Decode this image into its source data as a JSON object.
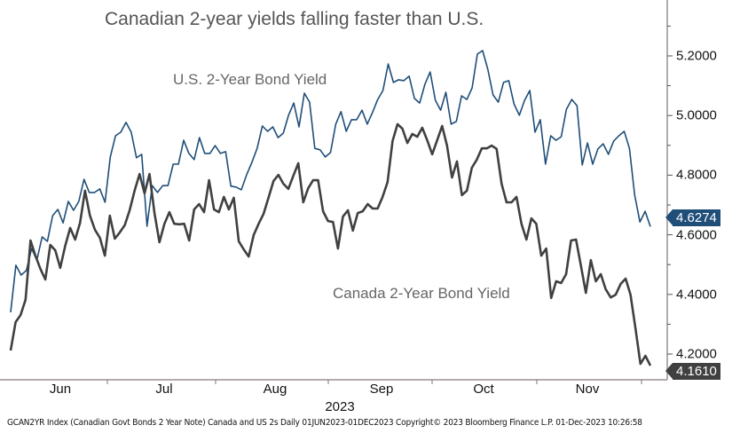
{
  "chart_data": {
    "type": "line",
    "title": "Canadian 2-year yields falling faster than U.S.",
    "x_range": [
      "2023-06-01",
      "2023-12-01"
    ],
    "frequency": "Daily",
    "x_tick_labels": [
      "Jun",
      "Jul",
      "Aug",
      "Sep",
      "Oct",
      "Nov"
    ],
    "x_year_label": "2023",
    "y_axis_position": "right",
    "ylim": [
      4.1,
      5.3
    ],
    "y_ticks": [
      4.2,
      4.4,
      4.6,
      4.8,
      5.0,
      5.2
    ],
    "y_tick_labels": [
      "4.2000",
      "4.4000",
      "4.6000",
      "4.8000",
      "5.0000",
      "5.2000"
    ],
    "grid": false,
    "series": [
      {
        "name": "U.S. 2-Year Bond Yield",
        "color": "#1f4e79",
        "last_value_label": "4.6274",
        "values": [
          4.34,
          4.498,
          4.465,
          4.48,
          4.554,
          4.515,
          4.593,
          4.578,
          4.664,
          4.685,
          4.64,
          4.712,
          4.682,
          4.712,
          4.786,
          4.742,
          4.742,
          4.754,
          4.709,
          4.861,
          4.932,
          4.944,
          4.977,
          4.944,
          4.858,
          4.87,
          4.629,
          4.765,
          4.742,
          4.765,
          4.765,
          4.837,
          4.837,
          4.917,
          4.873,
          4.852,
          4.926,
          4.873,
          4.873,
          4.899,
          4.873,
          4.879,
          4.763,
          4.76,
          4.751,
          4.801,
          4.843,
          4.89,
          4.965,
          4.947,
          4.962,
          4.926,
          4.941,
          5.001,
          5.042,
          4.962,
          5.075,
          5.045,
          4.89,
          4.885,
          4.861,
          4.876,
          4.971,
          5.013,
          4.947,
          4.986,
          4.986,
          5.018,
          4.971,
          5.01,
          5.054,
          5.084,
          5.173,
          5.111,
          5.12,
          5.117,
          5.132,
          5.057,
          5.042,
          5.105,
          5.146,
          5.051,
          5.018,
          5.078,
          4.971,
          4.98,
          5.066,
          5.054,
          5.093,
          5.206,
          5.218,
          5.155,
          5.069,
          5.045,
          5.111,
          5.117,
          5.039,
          5.001,
          5.051,
          5.084,
          4.944,
          4.986,
          4.837,
          4.932,
          4.917,
          4.929,
          5.021,
          5.054,
          5.033,
          4.834,
          4.908,
          4.837,
          4.888,
          4.905,
          4.87,
          4.914,
          4.932,
          4.947,
          4.89,
          4.733,
          4.643,
          4.679,
          4.6274
        ]
      },
      {
        "name": "Canada 2-Year Bond Yield",
        "color": "#404040",
        "last_value_label": "4.1610",
        "values": [
          4.212,
          4.307,
          4.331,
          4.382,
          4.581,
          4.53,
          4.486,
          4.45,
          4.566,
          4.548,
          4.489,
          4.563,
          4.623,
          4.584,
          4.64,
          4.748,
          4.664,
          4.617,
          4.59,
          4.53,
          4.664,
          4.587,
          4.608,
          4.632,
          4.682,
          4.748,
          4.804,
          4.739,
          4.804,
          4.673,
          4.575,
          4.637,
          4.676,
          4.637,
          4.635,
          4.637,
          4.581,
          4.685,
          4.703,
          4.676,
          4.783,
          4.685,
          4.676,
          4.727,
          4.685,
          4.724,
          4.578,
          4.551,
          4.527,
          4.599,
          4.637,
          4.67,
          4.724,
          4.78,
          4.801,
          4.771,
          4.754,
          4.798,
          4.84,
          4.709,
          4.756,
          4.783,
          4.783,
          4.679,
          4.646,
          4.643,
          4.554,
          4.661,
          4.682,
          4.614,
          4.673,
          4.679,
          4.703,
          4.688,
          4.688,
          4.727,
          4.777,
          4.914,
          4.971,
          4.956,
          4.908,
          4.938,
          4.929,
          4.959,
          4.917,
          4.87,
          4.917,
          4.965,
          4.899,
          4.792,
          4.846,
          4.733,
          4.748,
          4.825,
          4.852,
          4.89,
          4.89,
          4.899,
          4.888,
          4.771,
          4.709,
          4.709,
          4.727,
          4.637,
          4.584,
          4.655,
          4.637,
          4.53,
          4.554,
          4.388,
          4.444,
          4.438,
          4.468,
          4.581,
          4.584,
          4.495,
          4.405,
          4.515,
          4.444,
          4.468,
          4.417,
          4.39,
          4.399,
          4.435,
          4.453,
          4.399,
          4.286,
          4.167,
          4.194,
          4.161
        ]
      }
    ]
  },
  "footer": "GCAN2YR Index (Canadian Govt Bonds 2 Year Note) Canada and US 2s  Daily 01JUN2023-01DEC2023   Copyright© 2023 Bloomberg Finance L.P.   01-Dec-2023 10:26:58"
}
